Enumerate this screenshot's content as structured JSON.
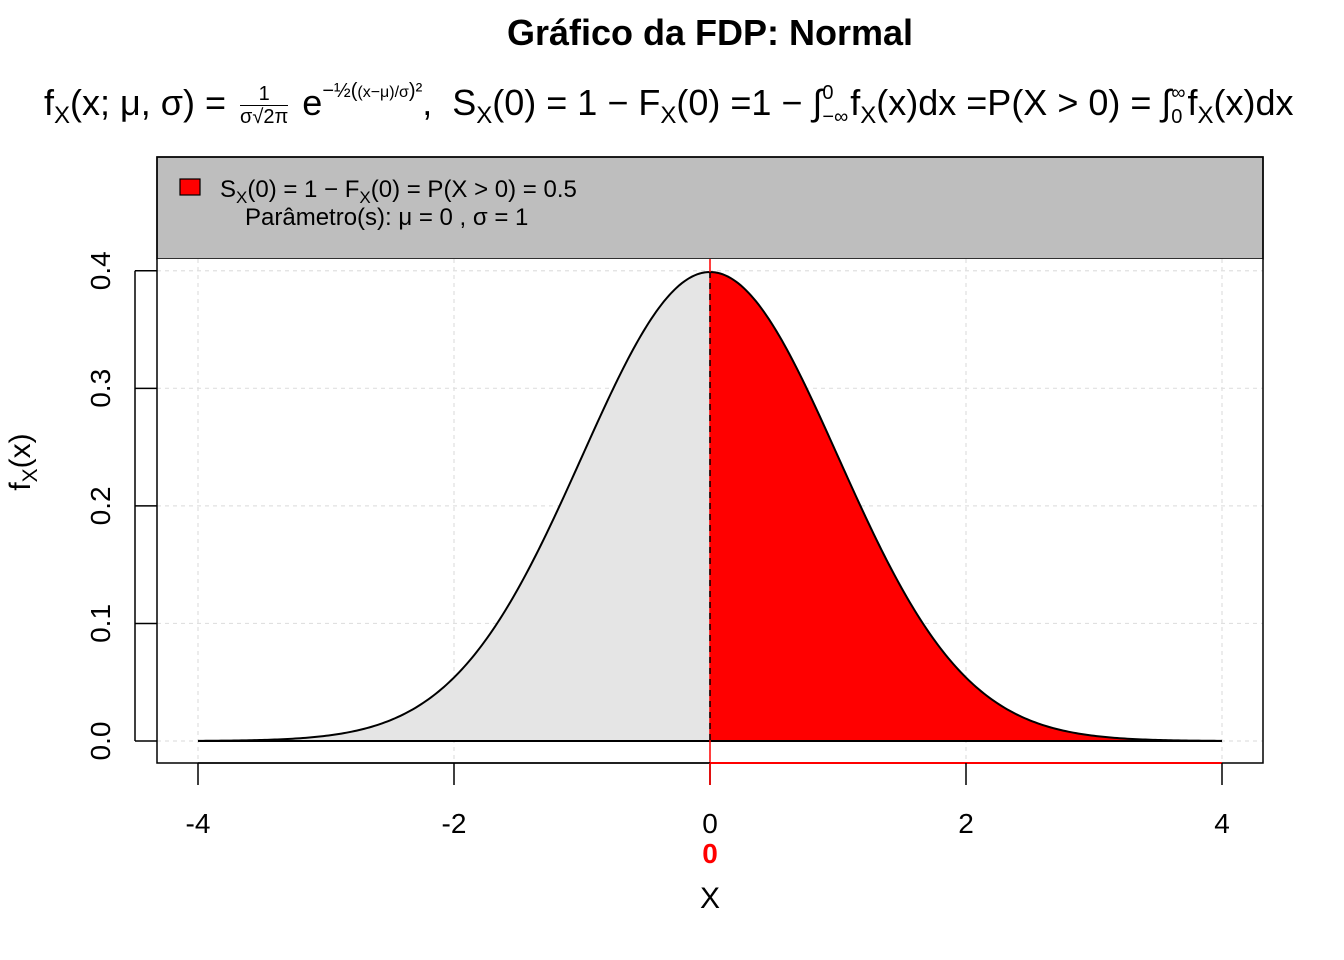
{
  "title": "Gráfico da FDP: Normal",
  "formula": {
    "lhs": "fX(x; μ, σ) = ",
    "frac_num": "1",
    "frac_den": "σ√2π",
    "exp_base": "e",
    "exponent": "−½((x−μ)/σ)²",
    "rest": ",  SX(0) = 1 − FX(0) =1 − ∫_{−∞}^{0} fX(x)dx =P(X > 0) = ∫_{0}^{∞} fX(x)dx"
  },
  "legend": {
    "line1": "SX(0) = 1 − FX(0) = P(X > 0) = 0.5",
    "line2": "Parâmetro(s): μ = 0 , σ = 1",
    "swatch_color": "#ff0000",
    "background": "#bebebe"
  },
  "chart_data": {
    "type": "area",
    "title": "Gráfico da FDP: Normal",
    "xlabel": "X",
    "ylabel": "fX(x)",
    "distribution": "Normal",
    "mu": 0,
    "sigma": 1,
    "xlim": [
      -4,
      4
    ],
    "ylim": [
      0,
      0.4
    ],
    "x_ticks": [
      -4,
      -2,
      0,
      2,
      4
    ],
    "x_tick_labels": [
      "-4",
      "-2",
      "0",
      "2",
      "4"
    ],
    "y_ticks": [
      0.0,
      0.1,
      0.2,
      0.3,
      0.4
    ],
    "y_tick_labels": [
      "0.0",
      "0.1",
      "0.2",
      "0.3",
      "0.4"
    ],
    "highlight": {
      "from": 0,
      "to": 4,
      "color": "#ff0000",
      "label": "0",
      "probability": 0.5
    },
    "fill_left_color": "#e5e5e5",
    "grid": true,
    "legend_position": "top"
  }
}
